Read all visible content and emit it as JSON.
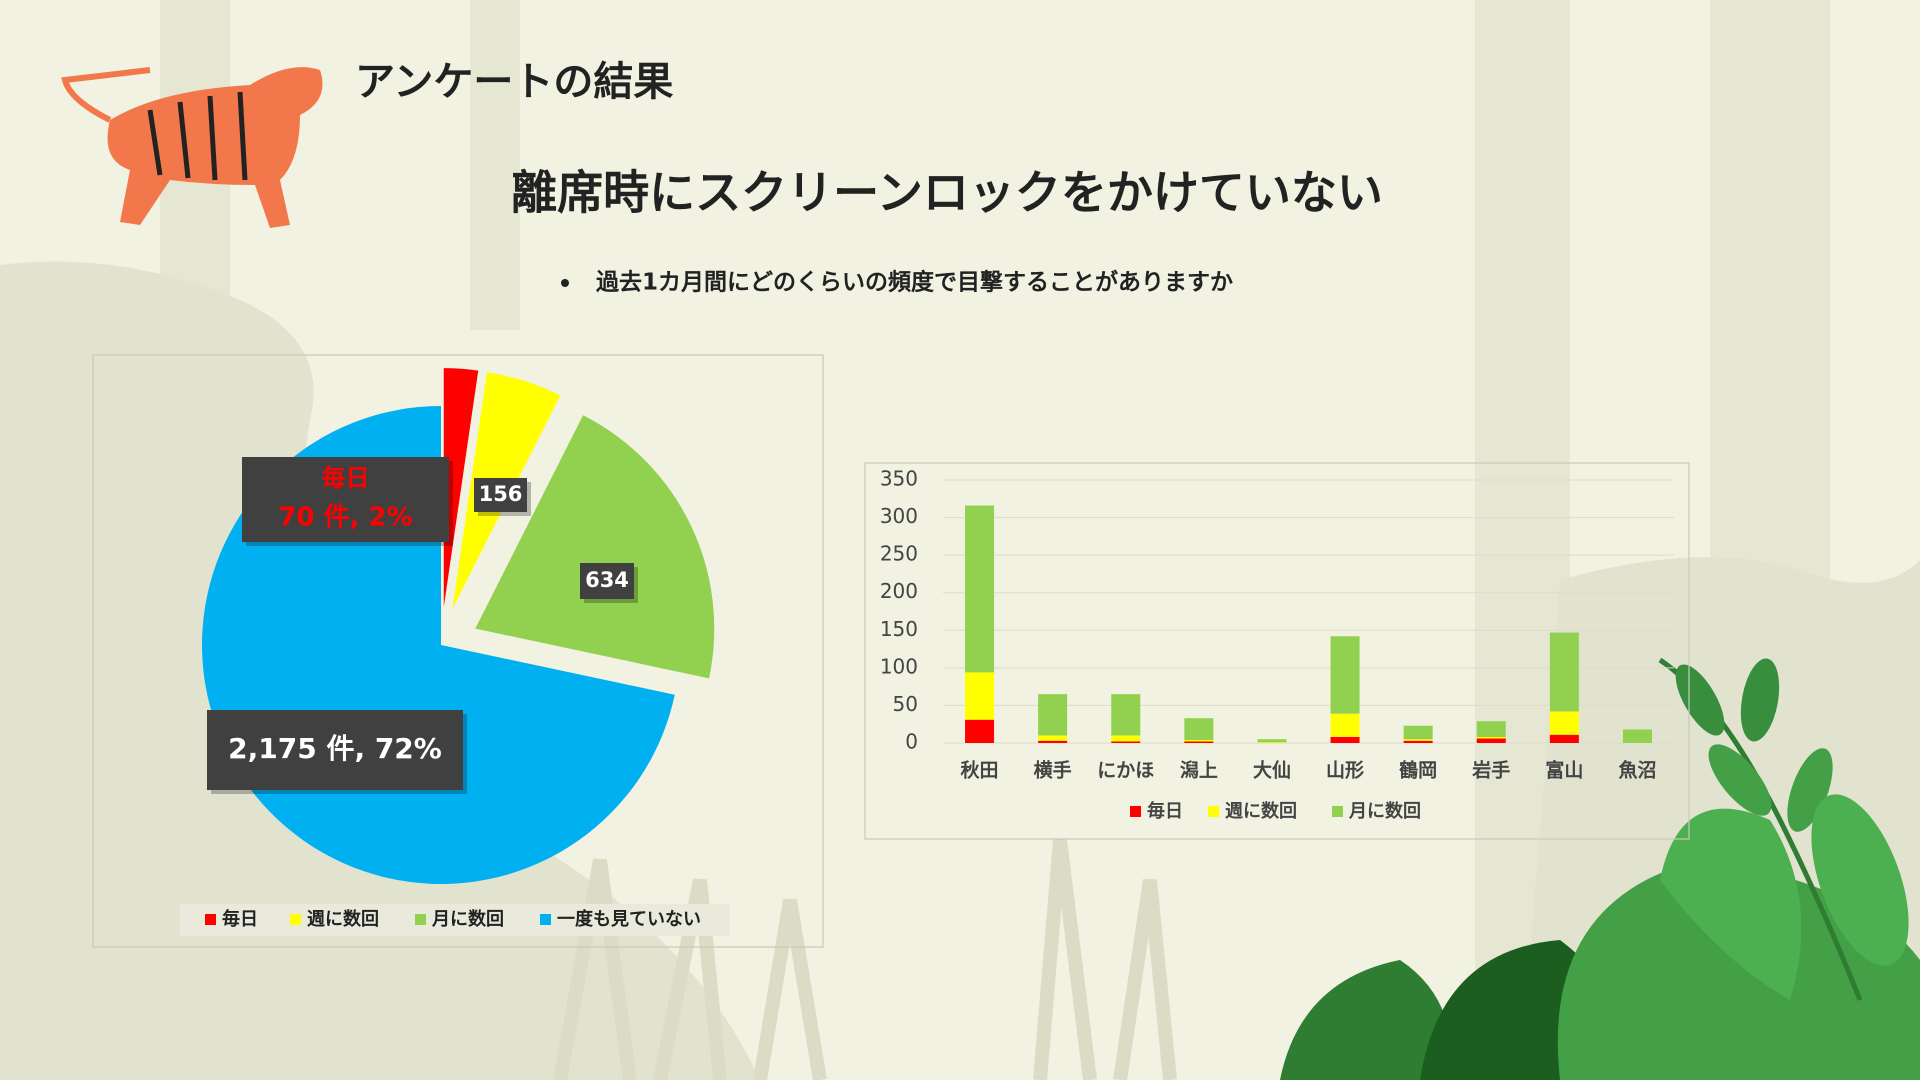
{
  "header": {
    "section": "アンケートの結果",
    "title": "離席時にスクリーンロックをかけていない",
    "bullet": "過去1カ月間にどのくらいの頻度で目撃することがありますか"
  },
  "chart_data": [
    {
      "type": "pie",
      "categories": [
        "毎日",
        "週に数回",
        "月に数回",
        "一度も見ていない"
      ],
      "values": [
        70,
        156,
        634,
        2175
      ],
      "value_labels": [
        "70 件, 2%",
        "156",
        "634",
        "2,175 件, 72%"
      ],
      "colors": [
        "#ff0000",
        "#ffff00",
        "#92d050",
        "#00b0f0"
      ],
      "legend": "bottom"
    },
    {
      "type": "stacked-bar",
      "categories": [
        "秋田",
        "横手",
        "にかほ",
        "潟上",
        "大仙",
        "山形",
        "鶴岡",
        "岩手",
        "富山",
        "魚沼"
      ],
      "series": [
        {
          "name": "毎日",
          "color": "#ff0000",
          "values": [
            31,
            3,
            2,
            2,
            0,
            8,
            3,
            6,
            11,
            0
          ]
        },
        {
          "name": "週に数回",
          "color": "#ffff00",
          "values": [
            63,
            7,
            8,
            2,
            1,
            31,
            2,
            2,
            31,
            0
          ]
        },
        {
          "name": "月に数回",
          "color": "#92d050",
          "values": [
            222,
            55,
            55,
            29,
            4,
            103,
            18,
            21,
            105,
            18
          ]
        }
      ],
      "ylim": [
        0,
        350
      ],
      "yticks": [
        0,
        50,
        100,
        150,
        200,
        250,
        300,
        350
      ],
      "grid": true,
      "legend": "bottom"
    }
  ]
}
